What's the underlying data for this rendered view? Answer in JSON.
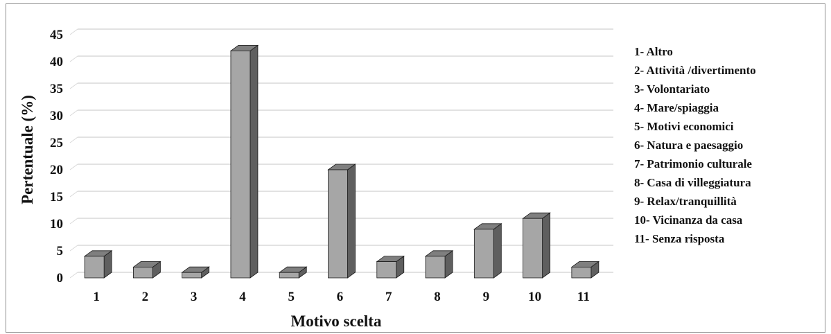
{
  "chart_data": {
    "type": "bar",
    "style": "3d-column",
    "categories": [
      "1",
      "2",
      "3",
      "4",
      "5",
      "6",
      "7",
      "8",
      "9",
      "10",
      "11"
    ],
    "values": [
      4,
      2,
      1,
      42,
      1,
      20,
      3,
      4,
      9,
      11,
      2
    ],
    "xlabel": "Motivo scelta",
    "ylabel": "Pertentuale (%)",
    "ylim": [
      0,
      45
    ],
    "yticks": [
      0,
      5,
      10,
      15,
      20,
      25,
      30,
      35,
      40,
      45
    ],
    "grid": true,
    "legend_placement": "right",
    "legend": [
      "1- Altro",
      "2- Attività /divertimento",
      "3- Volontariato",
      "4- Mare/spiaggia",
      "5- Motivi economici",
      "6- Natura e paesaggio",
      "7- Patrimonio culturale",
      "8- Casa di villeggiatura",
      "9- Relax/tranquillità",
      "10- Vicinanza da casa",
      "11- Senza risposta"
    ],
    "colors": {
      "bar_front": "#a6a6a6",
      "bar_top": "#7f7f7f",
      "bar_side": "#5f5f5f",
      "outline": "#1a1a1a",
      "grid": "#d9d9d9"
    }
  }
}
